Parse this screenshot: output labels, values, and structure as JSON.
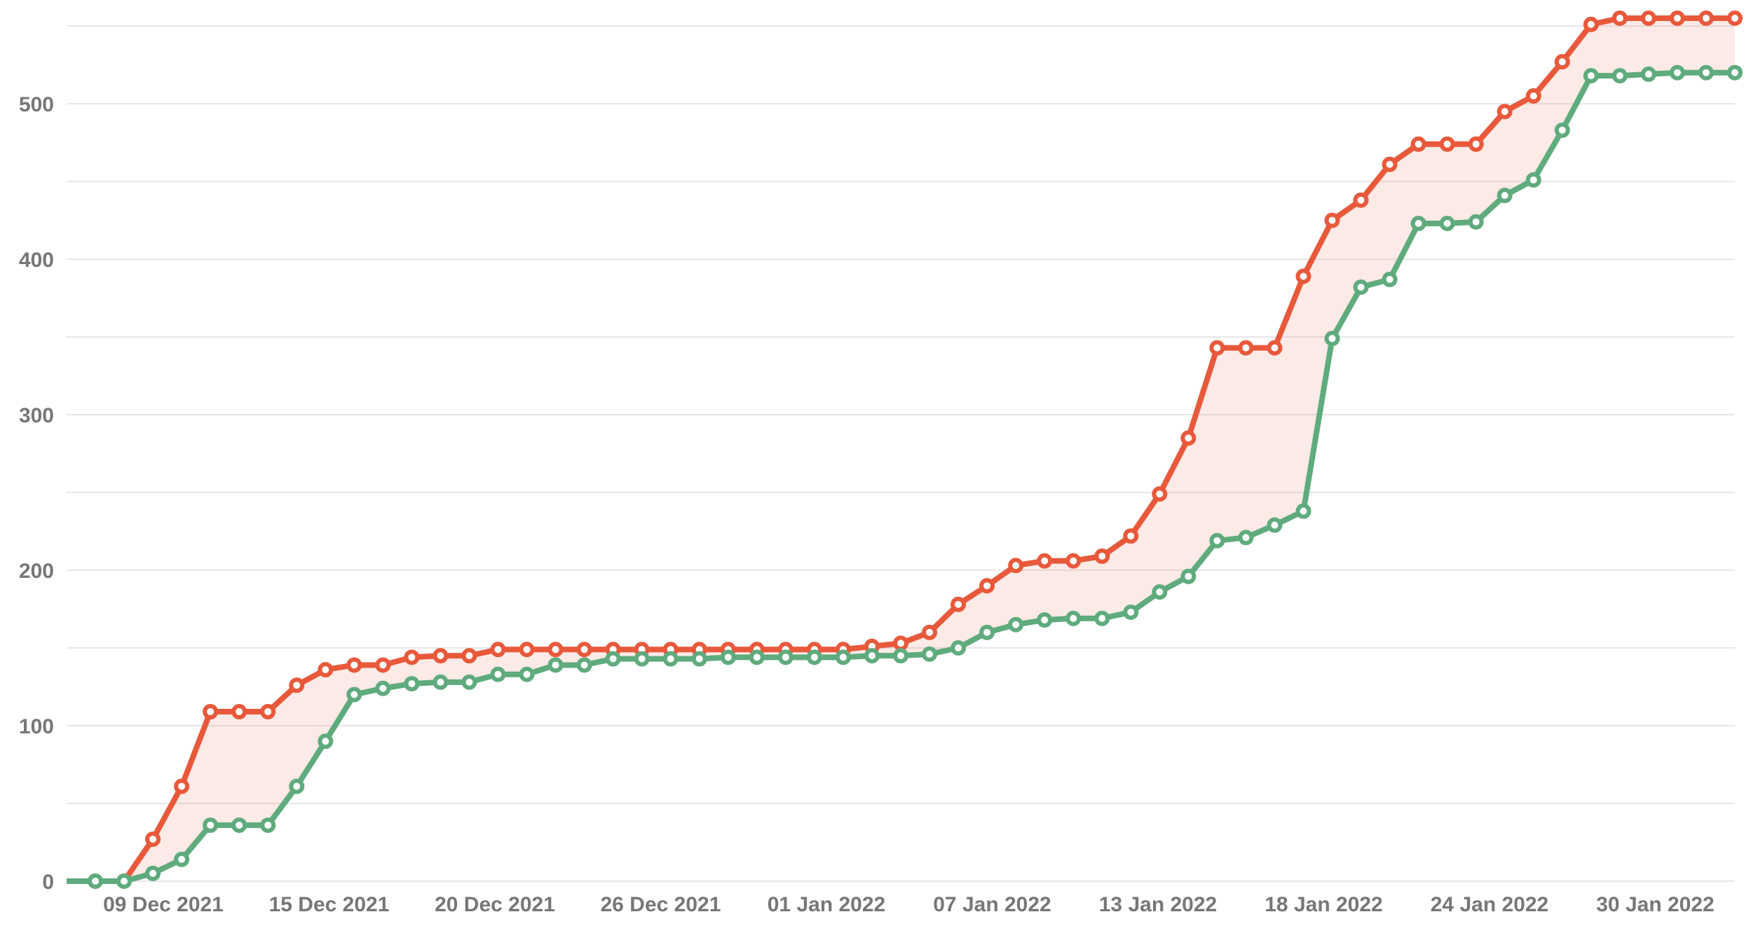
{
  "page": {
    "background_color": "#ffffff",
    "title": "",
    "legend": "none"
  },
  "chart_data": {
    "type": "line",
    "title": "",
    "xlabel": "",
    "ylabel": "",
    "x_axis_kind": "date",
    "x_tick_labels": [
      "09 Dec 2021",
      "15 Dec 2021",
      "20 Dec 2021",
      "26 Dec 2021",
      "01 Jan 2022",
      "07 Jan 2022",
      "13 Jan 2022",
      "18 Jan 2022",
      "24 Jan 2022",
      "30 Jan 2022"
    ],
    "y_tick_labels": [
      "0",
      "100",
      "200",
      "300",
      "400",
      "500"
    ],
    "ylim": [
      0,
      555
    ],
    "y_gridline_step": 50,
    "grid": "horizontal-only",
    "legend_position": "none",
    "point_count": 59,
    "series": [
      {
        "name": "upper-red-series",
        "color": "#E8593B",
        "values": [
          0,
          0,
          0,
          27,
          61,
          109,
          109,
          109,
          126,
          136,
          139,
          139,
          144,
          145,
          145,
          149,
          149,
          149,
          149,
          149,
          149,
          149,
          149,
          149,
          149,
          149,
          149,
          149,
          151,
          153,
          160,
          178,
          190,
          203,
          206,
          206,
          209,
          222,
          249,
          285,
          343,
          343,
          343,
          389,
          425,
          438,
          461,
          474,
          474,
          474,
          495,
          505,
          527,
          551,
          555,
          555,
          555,
          555,
          555
        ]
      },
      {
        "name": "lower-green-series",
        "color": "#5FAB7D",
        "values": [
          0,
          0,
          0,
          5,
          14,
          36,
          36,
          36,
          61,
          90,
          120,
          124,
          127,
          128,
          128,
          133,
          133,
          139,
          139,
          143,
          143,
          143,
          143,
          144,
          144,
          144,
          144,
          144,
          145,
          145,
          146,
          150,
          160,
          165,
          168,
          169,
          169,
          173,
          186,
          196,
          219,
          221,
          229,
          238,
          349,
          382,
          387,
          423,
          423,
          424,
          441,
          451,
          483,
          518,
          518,
          519,
          520,
          520,
          520
        ]
      }
    ],
    "fill_between": {
      "upper": "upper-red-series",
      "lower": "lower-green-series",
      "color_rgba": "rgba(232,89,59,0.13)"
    },
    "marker_style": {
      "shape": "circle",
      "fill": "#ffffff",
      "radius": 8,
      "ring_width": 6,
      "first_point_has_marker": false
    },
    "line_width": 8,
    "gridline_color": "#E7E7E7",
    "axis_label_color": "#777777"
  }
}
